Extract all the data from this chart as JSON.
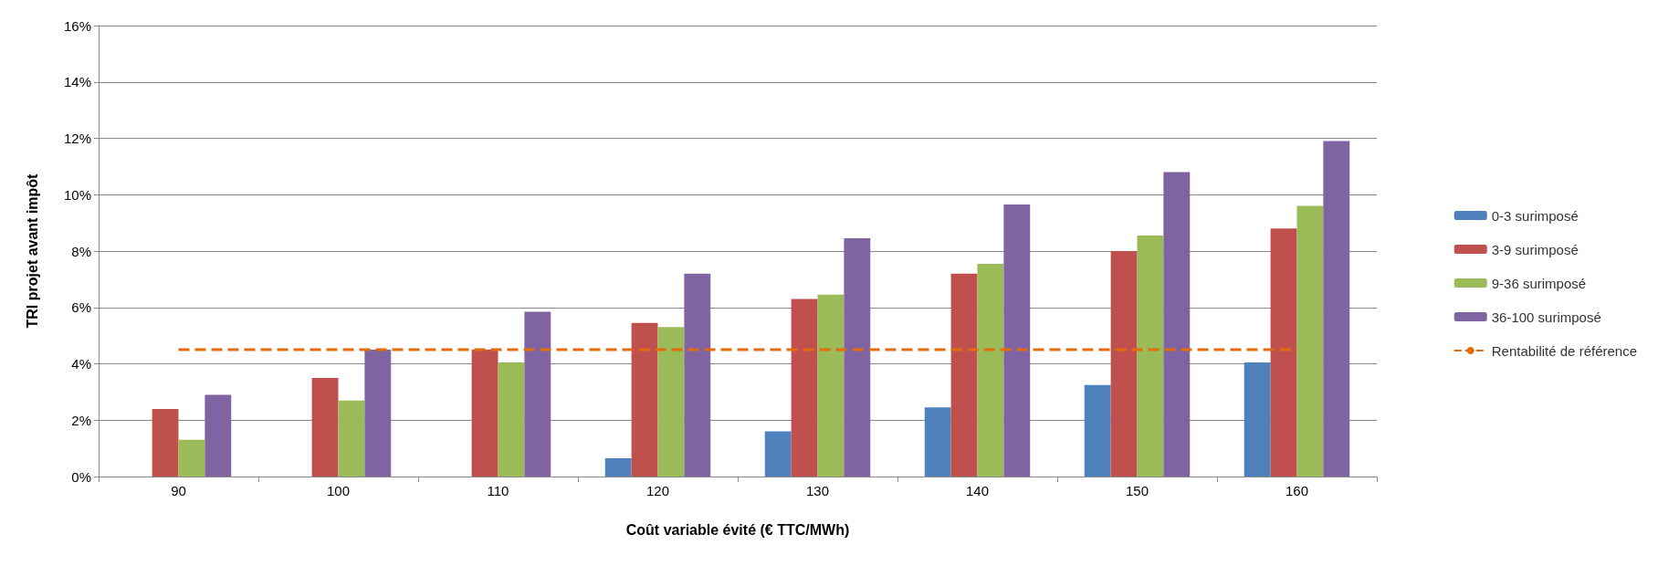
{
  "chart_data": {
    "type": "bar",
    "xlabel": "Coût variable évité (€ TTC/MWh)",
    "ylabel": "TRI projet avant impôt",
    "categories": [
      "90",
      "100",
      "110",
      "120",
      "130",
      "140",
      "150",
      "160"
    ],
    "series": [
      {
        "name": "0-3 surimposé",
        "color": "#4f81bd",
        "values": [
          null,
          null,
          null,
          0.65,
          1.6,
          2.45,
          3.25,
          4.05
        ]
      },
      {
        "name": "3-9 surimposé",
        "color": "#c0504d",
        "values": [
          2.4,
          3.5,
          4.5,
          5.45,
          6.3,
          7.2,
          8.0,
          8.8
        ]
      },
      {
        "name": "9-36 surimposé",
        "color": "#9bbb59",
        "values": [
          1.3,
          2.7,
          4.05,
          5.3,
          6.45,
          7.55,
          8.55,
          9.6
        ]
      },
      {
        "name": "36-100 surimposé",
        "color": "#8064a2",
        "values": [
          2.9,
          4.5,
          5.85,
          7.2,
          8.45,
          9.65,
          10.8,
          11.9
        ]
      },
      {
        "name": "Rentabilité de référence",
        "type": "line",
        "color": "#e46c0a",
        "line_style": "dashed",
        "marker": "none",
        "values": [
          4.5,
          4.5,
          4.5,
          4.5,
          4.5,
          4.5,
          4.5,
          4.5
        ]
      }
    ],
    "ylim": [
      0,
      16
    ],
    "yticks": [
      {
        "value": 0,
        "label": "0%"
      },
      {
        "value": 2,
        "label": "2%"
      },
      {
        "value": 4,
        "label": "4%"
      },
      {
        "value": 6,
        "label": "6%"
      },
      {
        "value": 8,
        "label": "8%"
      },
      {
        "value": 10,
        "label": "10%"
      },
      {
        "value": 12,
        "label": "12%"
      },
      {
        "value": 14,
        "label": "14%"
      },
      {
        "value": 16,
        "label": "16%"
      }
    ],
    "grid": "y",
    "legend": "right"
  }
}
